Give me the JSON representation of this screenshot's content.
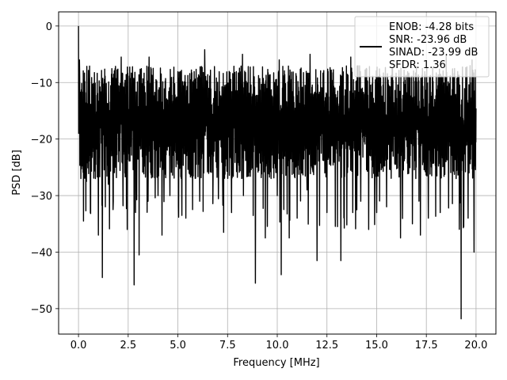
{
  "chart_data": {
    "type": "line",
    "xlabel": "Frequency [MHz]",
    "ylabel": "PSD [dB]",
    "xlim": [
      -1.0,
      21.0
    ],
    "ylim": [
      -54.5,
      2.5
    ],
    "x_ticks": [
      0.0,
      2.5,
      5.0,
      7.5,
      10.0,
      12.5,
      15.0,
      17.5,
      20.0
    ],
    "x_tick_labels": [
      "0.0",
      "2.5",
      "5.0",
      "7.5",
      "10.0",
      "12.5",
      "15.0",
      "17.5",
      "20.0"
    ],
    "y_ticks": [
      0,
      -10,
      -20,
      -30,
      -40,
      -50
    ],
    "y_tick_labels": [
      "0",
      "−10",
      "−20",
      "−30",
      "−40",
      "−50"
    ],
    "grid": true,
    "legend_position": "top-right",
    "line_color": "#000000",
    "series": [
      {
        "name": "ENOB: -4.28 bits\nSNR: -23.96 dB\nSINAD: -23.99 dB\nSFDR: 1.36",
        "x_range": [
          0.0,
          20.0
        ],
        "envelope": {
          "typical_upper": -7,
          "typical_lower": -27,
          "band_center": -17
        },
        "peak": {
          "x": 0.0,
          "y": 0.0
        },
        "deep_dips": [
          {
            "x": 0.12,
            "y": -27
          },
          {
            "x": 0.25,
            "y": -34.5
          },
          {
            "x": 0.4,
            "y": -27.5
          },
          {
            "x": 0.6,
            "y": -33
          },
          {
            "x": 0.85,
            "y": -27
          },
          {
            "x": 1.0,
            "y": -37
          },
          {
            "x": 1.2,
            "y": -44.5
          },
          {
            "x": 1.35,
            "y": -32
          },
          {
            "x": 1.5,
            "y": -28
          },
          {
            "x": 1.75,
            "y": -31
          },
          {
            "x": 2.15,
            "y": -37.5
          },
          {
            "x": 2.45,
            "y": -36
          },
          {
            "x": 2.8,
            "y": -45.8
          },
          {
            "x": 3.05,
            "y": -40.5
          },
          {
            "x": 3.5,
            "y": -31
          },
          {
            "x": 4.0,
            "y": -30
          },
          {
            "x": 4.2,
            "y": -37
          },
          {
            "x": 4.6,
            "y": -30
          },
          {
            "x": 5.2,
            "y": -33.5
          },
          {
            "x": 5.4,
            "y": -34
          },
          {
            "x": 6.1,
            "y": -31
          },
          {
            "x": 6.3,
            "y": -26
          },
          {
            "x": 7.3,
            "y": -36.5
          },
          {
            "x": 7.7,
            "y": -33
          },
          {
            "x": 8.3,
            "y": -30
          },
          {
            "x": 8.9,
            "y": -45.5
          },
          {
            "x": 9.4,
            "y": -37.5
          },
          {
            "x": 10.0,
            "y": -30
          },
          {
            "x": 10.2,
            "y": -44
          },
          {
            "x": 10.6,
            "y": -37.5
          },
          {
            "x": 11.0,
            "y": -34
          },
          {
            "x": 11.5,
            "y": -29
          },
          {
            "x": 12.0,
            "y": -41.5
          },
          {
            "x": 12.5,
            "y": -33
          },
          {
            "x": 13.2,
            "y": -41.5
          },
          {
            "x": 13.8,
            "y": -33
          },
          {
            "x": 14.2,
            "y": -31
          },
          {
            "x": 14.6,
            "y": -36
          },
          {
            "x": 15.0,
            "y": -33
          },
          {
            "x": 15.5,
            "y": -32
          },
          {
            "x": 16.2,
            "y": -37.5
          },
          {
            "x": 16.8,
            "y": -35
          },
          {
            "x": 17.2,
            "y": -37
          },
          {
            "x": 17.6,
            "y": -34
          },
          {
            "x": 18.2,
            "y": -33
          },
          {
            "x": 19.0,
            "y": -27
          },
          {
            "x": 19.25,
            "y": -51.8
          },
          {
            "x": 19.6,
            "y": -34
          },
          {
            "x": 19.9,
            "y": -40
          }
        ],
        "notable_peaks": [
          {
            "x": 0.05,
            "y": -6
          },
          {
            "x": 2.15,
            "y": -5.5
          },
          {
            "x": 3.55,
            "y": -5.5
          },
          {
            "x": 6.35,
            "y": -4.2
          },
          {
            "x": 8.25,
            "y": -5
          },
          {
            "x": 10.1,
            "y": -6
          },
          {
            "x": 11.65,
            "y": -5
          },
          {
            "x": 13.7,
            "y": -5.5
          },
          {
            "x": 18.5,
            "y": -5
          },
          {
            "x": 19.8,
            "y": -6
          }
        ]
      }
    ]
  }
}
